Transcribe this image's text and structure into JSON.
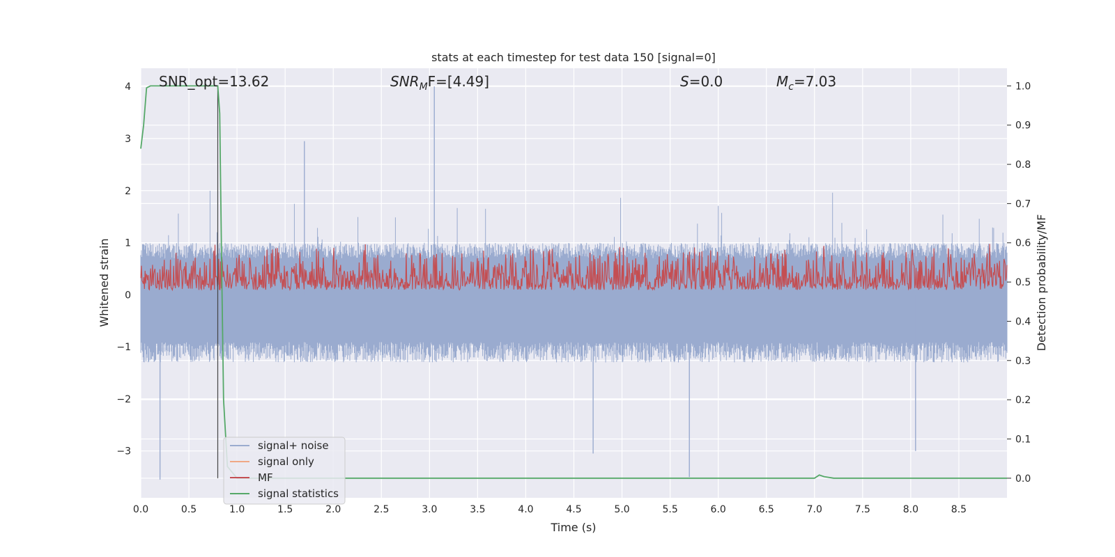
{
  "chart_data": {
    "type": "line",
    "title": "stats at each timestep for test data 150 [signal=0]",
    "xlabel": "Time (s)",
    "ylabel_left": "Whitened strain",
    "ylabel_right": "Detection probability/MF",
    "xlim": [
      0,
      9
    ],
    "ylim_left": [
      -3.9,
      4.35
    ],
    "ylim_right": [
      -0.05,
      1.045
    ],
    "x_ticks": [
      "0.0",
      "0.5",
      "1.0",
      "1.5",
      "2.0",
      "2.5",
      "3.0",
      "3.5",
      "4.0",
      "4.5",
      "5.0",
      "5.5",
      "6.0",
      "6.5",
      "7.0",
      "7.5",
      "8.0",
      "8.5"
    ],
    "y_ticks_left": [
      "4",
      "3",
      "2",
      "1",
      "0",
      "−1",
      "−2",
      "−3"
    ],
    "y_ticks_right": [
      "1.0",
      "0.9",
      "0.8",
      "0.7",
      "0.6",
      "0.5",
      "0.4",
      "0.3",
      "0.2",
      "0.1",
      "0.0"
    ],
    "grid": true,
    "legend_position": "bottom-left",
    "annotations": {
      "snr_opt": "SNR_opt=13.62",
      "snr_mf_sym": "SNR",
      "snr_mf_sub": "M",
      "snr_mf_rest": "F=[4.49]",
      "s_sym": "S",
      "s_rest": "=0.0",
      "mc_sym": "M",
      "mc_sub": "c",
      "mc_rest": "=7.03"
    },
    "vertical_marker_x": 0.8,
    "series": [
      {
        "name": "signal+ noise",
        "color": "#9aabcf",
        "axis": "left",
        "description_envelope": {
          "typical_min": -1.3,
          "typical_max": 1.0,
          "peak_max": 4.0,
          "peak_min": -3.55
        }
      },
      {
        "name": "signal only",
        "color": "#f0a885",
        "axis": "left"
      },
      {
        "name": "MF",
        "color": "#c44e52",
        "axis": "right",
        "range": [
          0.48,
          0.6
        ]
      },
      {
        "name": "signal statistics",
        "color": "#55a868",
        "axis": "right",
        "x": [
          0,
          0.03,
          0.06,
          0.1,
          0.2,
          0.5,
          0.78,
          0.8,
          0.82,
          0.84,
          0.86,
          0.9,
          1.0,
          2.0,
          3.0,
          4.0,
          5.0,
          6.0,
          6.9,
          7.0,
          7.05,
          7.1,
          7.2,
          8.0,
          9.0
        ],
        "y": [
          0.84,
          0.9,
          0.995,
          1.0,
          1.0,
          1.0,
          1.0,
          1.0,
          0.93,
          0.55,
          0.2,
          0.03,
          0.0,
          0.0,
          0.0,
          0.0,
          0.0,
          0.0,
          0.0,
          0.0,
          0.008,
          0.004,
          0.0,
          0.0,
          0.0
        ]
      }
    ]
  }
}
